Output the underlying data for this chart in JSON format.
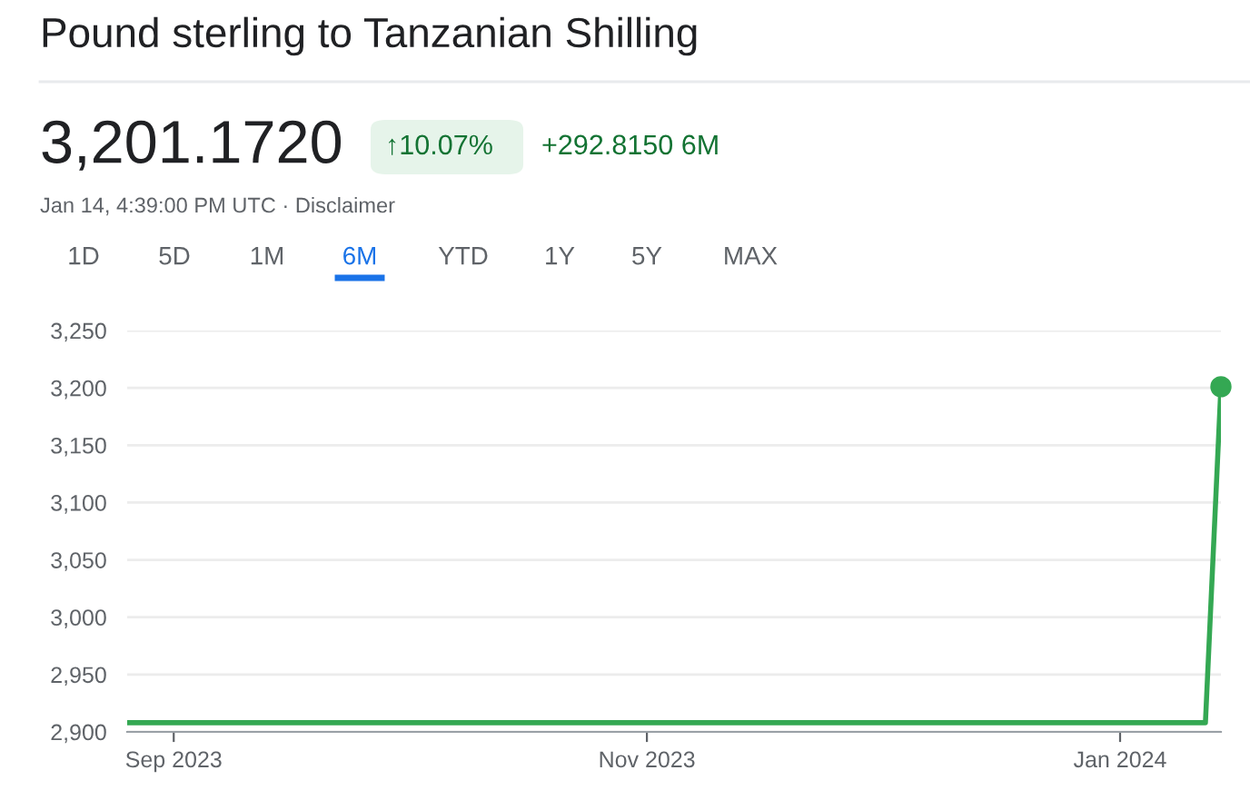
{
  "chart_data": {
    "type": "line",
    "title": "Pound sterling to Tanzanian Shilling",
    "subtitle": "3,201.1720",
    "annotations": [
      "↑10.07%",
      "+292.8150 6M",
      "Jan 14, 4:39:00 PM UTC · Disclaimer",
      "1D",
      "5D",
      "1M",
      "6M",
      "YTD",
      "1Y",
      "5Y",
      "MAX"
    ],
    "series": [
      {
        "color": "#34a853",
        "x": [
          "2023-08-26",
          "2024-01-12",
          "2024-01-14"
        ],
        "values": [
          2908,
          2908,
          3201
        ]
      },
      {
        "type": "scatter",
        "color": "#34a853",
        "x": [
          "2024-01-14"
        ],
        "values": [
          3201
        ]
      }
    ],
    "xlim": [
      "2023-08-26",
      "2024-01-14"
    ],
    "xticks": [
      {
        "value": "2023-09-01",
        "label": "Sep 2023"
      },
      {
        "value": "2023-11-01",
        "label": "Nov 2023"
      },
      {
        "value": "2024-01-01",
        "label": "Jan 2024"
      }
    ],
    "ylim": [
      2900,
      3250
    ],
    "yticks": [
      {
        "value": 2900,
        "label": "2,900"
      },
      {
        "value": 2950,
        "label": "2,950"
      },
      {
        "value": 3000,
        "label": "3,000"
      },
      {
        "value": 3050,
        "label": "3,050"
      },
      {
        "value": 3100,
        "label": "3,100"
      },
      {
        "value": 3150,
        "label": "3,150"
      },
      {
        "value": 3200,
        "label": "3,200"
      },
      {
        "value": 3250,
        "label": "3,250"
      }
    ],
    "grid": "y"
  }
}
